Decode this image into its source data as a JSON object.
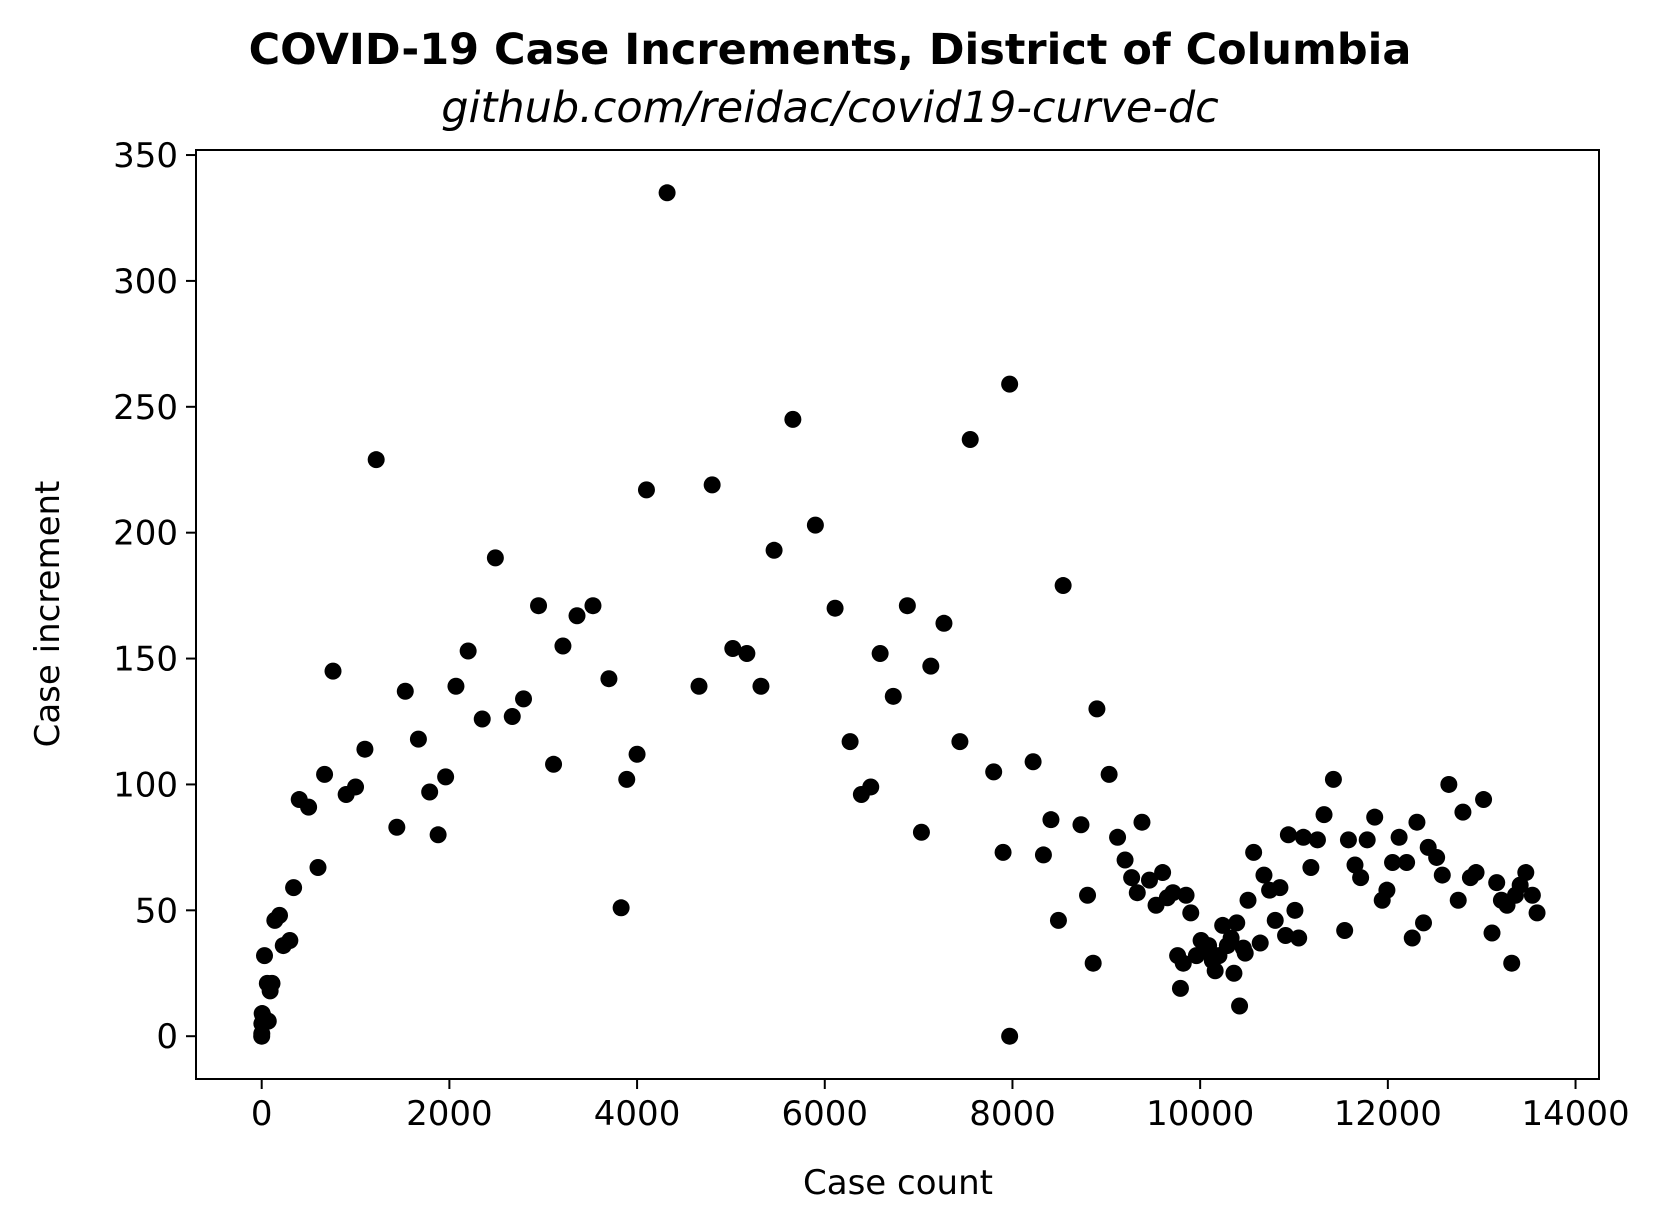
{
  "chart_data": {
    "type": "scatter",
    "title": "COVID-19 Case Increments, District of Columbia",
    "subtitle": "github.com/reidac/covid19-curve-dc",
    "xlabel": "Case count",
    "ylabel": "Case increment",
    "xlim": [
      -700,
      14250
    ],
    "ylim": [
      -17,
      352
    ],
    "grid": false,
    "legend": "none",
    "marker_color": "#000000",
    "xticks": [
      0,
      2000,
      4000,
      6000,
      8000,
      10000,
      12000,
      14000
    ],
    "xtick_labels": [
      "0",
      "2000",
      "4000",
      "6000",
      "8000",
      "10000",
      "12000",
      "14000"
    ],
    "yticks": [
      0,
      50,
      100,
      150,
      200,
      250,
      300,
      350
    ],
    "ytick_labels": [
      "0",
      "50",
      "100",
      "150",
      "200",
      "250",
      "300",
      "350"
    ],
    "points": [
      [
        0,
        0
      ],
      [
        1,
        1
      ],
      [
        2,
        5
      ],
      [
        5,
        9
      ],
      [
        14,
        8
      ],
      [
        30,
        32
      ],
      [
        60,
        21
      ],
      [
        70,
        6
      ],
      [
        90,
        18
      ],
      [
        110,
        21
      ],
      [
        140,
        46
      ],
      [
        190,
        48
      ],
      [
        230,
        36
      ],
      [
        300,
        38
      ],
      [
        340,
        59
      ],
      [
        400,
        94
      ],
      [
        500,
        91
      ],
      [
        600,
        67
      ],
      [
        670,
        104
      ],
      [
        760,
        145
      ],
      [
        900,
        96
      ],
      [
        1000,
        99
      ],
      [
        1100,
        114
      ],
      [
        1220,
        229
      ],
      [
        1440,
        83
      ],
      [
        1530,
        137
      ],
      [
        1670,
        118
      ],
      [
        1790,
        97
      ],
      [
        1880,
        80
      ],
      [
        1960,
        103
      ],
      [
        2070,
        139
      ],
      [
        2200,
        153
      ],
      [
        2350,
        126
      ],
      [
        2490,
        190
      ],
      [
        2670,
        127
      ],
      [
        2790,
        134
      ],
      [
        2950,
        171
      ],
      [
        3110,
        108
      ],
      [
        3210,
        155
      ],
      [
        3360,
        167
      ],
      [
        3530,
        171
      ],
      [
        3700,
        142
      ],
      [
        3830,
        51
      ],
      [
        3890,
        102
      ],
      [
        4000,
        112
      ],
      [
        4100,
        217
      ],
      [
        4320,
        335
      ],
      [
        4660,
        139
      ],
      [
        4800,
        219
      ],
      [
        5020,
        154
      ],
      [
        5170,
        152
      ],
      [
        5320,
        139
      ],
      [
        5460,
        193
      ],
      [
        5660,
        245
      ],
      [
        5900,
        203
      ],
      [
        6110,
        170
      ],
      [
        6270,
        117
      ],
      [
        6390,
        96
      ],
      [
        6490,
        99
      ],
      [
        6590,
        152
      ],
      [
        6730,
        135
      ],
      [
        6880,
        171
      ],
      [
        7030,
        81
      ],
      [
        7130,
        147
      ],
      [
        7270,
        164
      ],
      [
        7440,
        117
      ],
      [
        7550,
        237
      ],
      [
        7800,
        105
      ],
      [
        7900,
        73
      ],
      [
        7970,
        259
      ],
      [
        7970,
        0
      ],
      [
        8220,
        109
      ],
      [
        8330,
        72
      ],
      [
        8410,
        86
      ],
      [
        8490,
        46
      ],
      [
        8540,
        179
      ],
      [
        8730,
        84
      ],
      [
        8800,
        56
      ],
      [
        8860,
        29
      ],
      [
        8900,
        130
      ],
      [
        9030,
        104
      ],
      [
        9120,
        79
      ],
      [
        9200,
        70
      ],
      [
        9270,
        63
      ],
      [
        9330,
        57
      ],
      [
        9380,
        85
      ],
      [
        9460,
        62
      ],
      [
        9530,
        52
      ],
      [
        9600,
        65
      ],
      [
        9650,
        55
      ],
      [
        9710,
        57
      ],
      [
        9760,
        32
      ],
      [
        9790,
        19
      ],
      [
        9820,
        29
      ],
      [
        9850,
        56
      ],
      [
        9900,
        49
      ],
      [
        9960,
        32
      ],
      [
        10010,
        38
      ],
      [
        10050,
        34
      ],
      [
        10090,
        36
      ],
      [
        10130,
        30
      ],
      [
        10160,
        26
      ],
      [
        10200,
        32
      ],
      [
        10240,
        44
      ],
      [
        10290,
        36
      ],
      [
        10330,
        39
      ],
      [
        10360,
        25
      ],
      [
        10390,
        45
      ],
      [
        10420,
        12
      ],
      [
        10460,
        35
      ],
      [
        10480,
        33
      ],
      [
        10510,
        54
      ],
      [
        10570,
        73
      ],
      [
        10640,
        37
      ],
      [
        10680,
        64
      ],
      [
        10740,
        58
      ],
      [
        10800,
        46
      ],
      [
        10850,
        59
      ],
      [
        10910,
        40
      ],
      [
        10940,
        80
      ],
      [
        11010,
        50
      ],
      [
        11050,
        39
      ],
      [
        11100,
        79
      ],
      [
        11180,
        67
      ],
      [
        11250,
        78
      ],
      [
        11320,
        88
      ],
      [
        11420,
        102
      ],
      [
        11540,
        42
      ],
      [
        11580,
        78
      ],
      [
        11650,
        68
      ],
      [
        11710,
        63
      ],
      [
        11780,
        78
      ],
      [
        11860,
        87
      ],
      [
        11940,
        54
      ],
      [
        11990,
        58
      ],
      [
        12050,
        69
      ],
      [
        12120,
        79
      ],
      [
        12200,
        69
      ],
      [
        12260,
        39
      ],
      [
        12310,
        85
      ],
      [
        12380,
        45
      ],
      [
        12430,
        75
      ],
      [
        12520,
        71
      ],
      [
        12580,
        64
      ],
      [
        12650,
        100
      ],
      [
        12750,
        54
      ],
      [
        12800,
        89
      ],
      [
        12880,
        63
      ],
      [
        12940,
        65
      ],
      [
        13020,
        94
      ],
      [
        13110,
        41
      ],
      [
        13160,
        61
      ],
      [
        13210,
        54
      ],
      [
        13270,
        52
      ],
      [
        13320,
        29
      ],
      [
        13360,
        56
      ],
      [
        13410,
        60
      ],
      [
        13470,
        65
      ],
      [
        13540,
        56
      ],
      [
        13590,
        49
      ]
    ]
  }
}
